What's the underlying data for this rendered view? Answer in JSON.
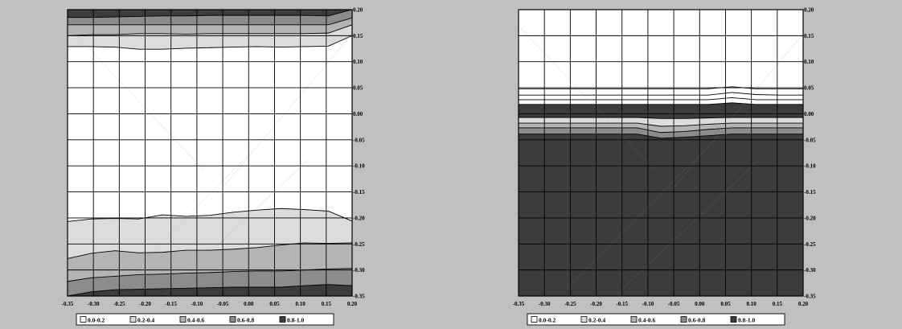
{
  "chart_data": [
    {
      "type": "contour",
      "x_ticks": [
        "-0.35",
        "-0.30",
        "-0.25",
        "-0.20",
        "-0.15",
        "-0.10",
        "-0.05",
        "0.00",
        "0.05",
        "0.10",
        "0.15",
        "0.20"
      ],
      "y_ticks": [
        "0.20",
        "0.15",
        "0.10",
        "0.05",
        "0.00",
        "-0.05",
        "-0.10",
        "-0.15",
        "-0.20",
        "-0.25",
        "-0.30",
        "-0.35"
      ],
      "xlim": [
        -0.35,
        0.2
      ],
      "ylim": [
        -0.35,
        0.2
      ],
      "background_level": 0,
      "legend": [
        "0.0-0.2",
        "0.2-0.4",
        "0.4-0.6",
        "0.6-0.8",
        "0.8-1.0"
      ],
      "level_colors": [
        "#ffffff",
        "#dcdcdc",
        "#b4b4b4",
        "#8c8c8c",
        "#3c3c3c"
      ],
      "boundaries": [
        {
          "level": 1,
          "y": [
            0.129,
            0.129,
            0.128,
            0.124,
            0.124,
            0.126,
            0.127,
            0.128,
            0.129,
            0.128,
            0.129,
            0.13,
            0.15
          ]
        },
        {
          "level": 2,
          "y": [
            0.15,
            0.152,
            0.152,
            0.154,
            0.154,
            0.153,
            0.154,
            0.154,
            0.154,
            0.154,
            0.154,
            0.155,
            0.171
          ]
        },
        {
          "level": 3,
          "y": [
            0.171,
            0.171,
            0.171,
            0.171,
            0.171,
            0.171,
            0.171,
            0.171,
            0.171,
            0.171,
            0.171,
            0.171,
            0.184
          ]
        },
        {
          "level": 4,
          "y": [
            0.185,
            0.185,
            0.186,
            0.187,
            0.188,
            0.188,
            0.189,
            0.189,
            0.189,
            0.189,
            0.189,
            0.188,
            0.2
          ]
        },
        {
          "level": 1,
          "y": [
            -0.207,
            -0.202,
            -0.201,
            -0.202,
            -0.194,
            -0.197,
            -0.195,
            -0.189,
            -0.185,
            -0.182,
            -0.184,
            -0.187,
            -0.206
          ]
        },
        {
          "level": 2,
          "y": [
            -0.278,
            -0.268,
            -0.263,
            -0.267,
            -0.266,
            -0.262,
            -0.262,
            -0.26,
            -0.257,
            -0.252,
            -0.248,
            -0.249,
            -0.248
          ]
        },
        {
          "level": 3,
          "y": [
            -0.322,
            -0.315,
            -0.312,
            -0.309,
            -0.308,
            -0.306,
            -0.305,
            -0.303,
            -0.302,
            -0.302,
            -0.3,
            -0.298,
            -0.297
          ]
        },
        {
          "level": 4,
          "y": [
            -0.35,
            -0.342,
            -0.338,
            -0.337,
            -0.336,
            -0.335,
            -0.334,
            -0.333,
            -0.333,
            -0.333,
            -0.33,
            -0.328,
            -0.33
          ]
        }
      ]
    },
    {
      "type": "contour",
      "x_ticks": [
        "-0.35",
        "-0.30",
        "-0.25",
        "-0.20",
        "-0.15",
        "-0.10",
        "-0.05",
        "0.00",
        "0.05",
        "0.10",
        "0.15",
        "0.20"
      ],
      "y_ticks": [
        "0.20",
        "0.15",
        "0.10",
        "0.05",
        "0.00",
        "-0.05",
        "-0.10",
        "-0.15",
        "-0.20",
        "-0.25",
        "-0.30",
        "-0.35"
      ],
      "xlim": [
        -0.35,
        0.2
      ],
      "ylim": [
        -0.35,
        0.2
      ],
      "background_level": 4,
      "legend": [
        "0.0-0.2",
        "0.2-0.4",
        "0.4-0.6",
        "0.6-0.8",
        "0.8-1.0"
      ],
      "level_colors": [
        "#ffffff",
        "#dcdcdc",
        "#b4b4b4",
        "#8c8c8c",
        "#3c3c3c"
      ],
      "boundaries": [
        {
          "level": 3,
          "y": [
            0.048,
            0.048,
            0.048,
            0.048,
            0.048,
            0.048,
            0.048,
            0.048,
            0.048,
            0.052,
            0.048,
            0.048,
            0.048
          ]
        },
        {
          "level": 2,
          "y": [
            0.036,
            0.036,
            0.036,
            0.036,
            0.036,
            0.036,
            0.036,
            0.036,
            0.036,
            0.041,
            0.037,
            0.036,
            0.036
          ]
        },
        {
          "level": 1,
          "y": [
            0.027,
            0.027,
            0.027,
            0.027,
            0.027,
            0.027,
            0.027,
            0.027,
            0.027,
            0.031,
            0.027,
            0.027,
            0.027
          ]
        },
        {
          "level": 0,
          "y": [
            0.018,
            0.018,
            0.018,
            0.018,
            0.018,
            0.018,
            0.018,
            0.018,
            0.018,
            0.021,
            0.018,
            0.018,
            0.018
          ]
        },
        {
          "level": 1,
          "y": [
            -0.007,
            -0.007,
            -0.007,
            -0.007,
            -0.007,
            -0.007,
            -0.009,
            -0.009,
            -0.008,
            -0.007,
            -0.007,
            -0.007,
            -0.007
          ]
        },
        {
          "level": 2,
          "y": [
            -0.018,
            -0.018,
            -0.018,
            -0.018,
            -0.018,
            -0.018,
            -0.024,
            -0.023,
            -0.02,
            -0.018,
            -0.018,
            -0.018,
            -0.018
          ]
        },
        {
          "level": 3,
          "y": [
            -0.027,
            -0.027,
            -0.027,
            -0.027,
            -0.027,
            -0.027,
            -0.036,
            -0.034,
            -0.03,
            -0.027,
            -0.027,
            -0.027,
            -0.027
          ]
        },
        {
          "level": 4,
          "y": [
            -0.039,
            -0.039,
            -0.039,
            -0.039,
            -0.039,
            -0.039,
            -0.047,
            -0.045,
            -0.042,
            -0.039,
            -0.039,
            -0.039,
            -0.039
          ]
        }
      ]
    }
  ]
}
